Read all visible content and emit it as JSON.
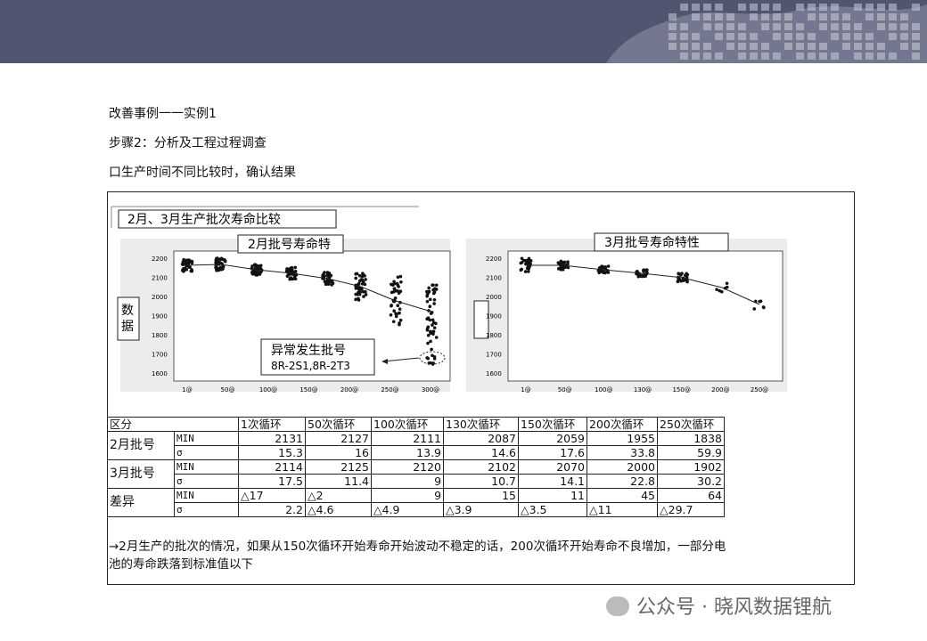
{
  "content": {
    "lines": [
      "改善事例一一实例1",
      "步骤2：分析及工程过程调查",
      "口生产时间不同比较时，确认结果"
    ]
  },
  "figure": {
    "title": "2月、3月生产批次寿命比较",
    "left_plot": {
      "title": "2月批号寿命特",
      "ylabel": "数据",
      "yticks": [
        "2200",
        "2100",
        "2000",
        "1900",
        "1800",
        "1700",
        "1600"
      ],
      "xticks": [
        "1@",
        "50@",
        "100@",
        "150@",
        "200@",
        "250@",
        "300@"
      ],
      "annotation": {
        "title": "异常发生批号",
        "text": "8R-2S1,8R-2T3"
      }
    },
    "right_plot": {
      "title": "3月批号寿命特性",
      "yticks": [
        "2200",
        "2100",
        "2000",
        "1900",
        "1800",
        "1700",
        "1600"
      ],
      "xticks": [
        "1@",
        "50@",
        "100@",
        "130@",
        "150@",
        "200@",
        "250@"
      ]
    }
  },
  "table": {
    "header": [
      "区分",
      "1次循环",
      "50次循环",
      "100次循环",
      "130次循环",
      "150次循环",
      "200次循环",
      "250次循环"
    ],
    "groups": [
      {
        "label": "2月批号",
        "rows": [
          [
            "MIN",
            2131,
            2127,
            2111,
            2087,
            2059,
            1955,
            1838
          ],
          [
            "σ",
            15.3,
            16,
            13.9,
            14.6,
            17.6,
            33.8,
            59.9
          ]
        ]
      },
      {
        "label": "3月批号",
        "rows": [
          [
            "MIN",
            2114,
            2125,
            2120,
            2102,
            2070,
            2000,
            1902
          ],
          [
            "σ",
            17.5,
            11.4,
            9,
            10.7,
            14.1,
            22.8,
            30.2
          ]
        ]
      },
      {
        "label": "差异",
        "rows": [
          [
            "MIN",
            "△17",
            "△2",
            9,
            15,
            11,
            45,
            64
          ],
          [
            "σ",
            2.2,
            "△4.6",
            "△4.9",
            "△3.9",
            "△3.5",
            "△11",
            "△29.7"
          ]
        ]
      }
    ]
  },
  "note": "→2月生产的批次的情况，如果从150次循环开始寿命开始波动不稳定的话，200次循环开始寿命不良增加，一部分电池的寿命跌落到标准值以下",
  "watermark": "公众号 · 晓风数据锂航"
}
